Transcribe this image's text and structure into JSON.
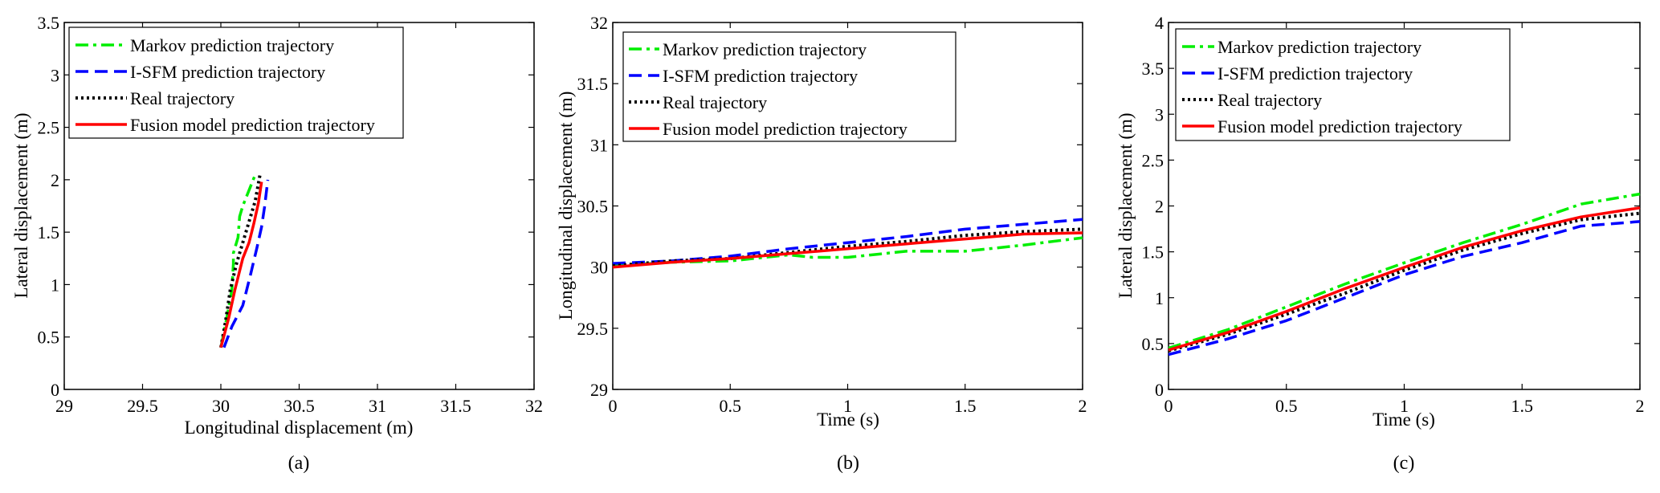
{
  "figure": {
    "captions": [
      "(a)",
      "(b)",
      "(c)"
    ]
  },
  "series_styles": [
    {
      "name": "Markov prediction trajectory",
      "color": "#00ee00",
      "dash": "dashdot"
    },
    {
      "name": "I-SFM prediction trajectory",
      "color": "#0000ff",
      "dash": "dashed"
    },
    {
      "name": "Real trajectory",
      "color": "#000000",
      "dash": "dotted"
    },
    {
      "name": "Fusion model prediction trajectory",
      "color": "#ff0000",
      "dash": "solid"
    }
  ],
  "chart_data": [
    {
      "id": "a",
      "type": "line",
      "caption": "(a)",
      "xlabel": "Longitudinal displacement (m)",
      "ylabel": "Lateral displacement (m)",
      "xlim": [
        29,
        32
      ],
      "ylim": [
        0,
        3.5
      ],
      "xticks": [
        29,
        29.5,
        30,
        30.5,
        31,
        31.5,
        32
      ],
      "yticks": [
        0,
        0.5,
        1,
        1.5,
        2,
        2.5,
        3,
        3.5
      ],
      "xtick_labels": [
        "29",
        "29.5",
        "30",
        "30.5",
        "31",
        "31.5",
        "32"
      ],
      "ytick_labels": [
        "0",
        "0.5",
        "1",
        "1.5",
        "2",
        "2.5",
        "3",
        "3.5"
      ],
      "legend": [
        "Markov prediction trajectory",
        "I-SFM prediction trajectory",
        "Real trajectory",
        "Fusion model prediction trajectory"
      ],
      "legend_position": "top-left",
      "series": [
        {
          "name": "Markov prediction trajectory",
          "x": [
            30.0,
            30.04,
            30.07,
            30.08,
            30.08,
            30.11,
            30.12,
            30.14,
            30.18,
            30.22
          ],
          "y": [
            0.4,
            0.7,
            0.95,
            1.2,
            1.3,
            1.45,
            1.65,
            1.75,
            1.9,
            2.05
          ]
        },
        {
          "name": "I-SFM prediction trajectory",
          "x": [
            30.02,
            30.07,
            30.14,
            30.19,
            30.23,
            30.26,
            30.28,
            30.3
          ],
          "y": [
            0.4,
            0.6,
            0.8,
            1.1,
            1.35,
            1.55,
            1.75,
            2.0
          ]
        },
        {
          "name": "Real trajectory",
          "x": [
            30.0,
            30.03,
            30.06,
            30.1,
            30.14,
            30.18,
            30.22,
            30.25
          ],
          "y": [
            0.4,
            0.65,
            0.95,
            1.2,
            1.4,
            1.6,
            1.8,
            2.05
          ]
        },
        {
          "name": "Fusion model prediction trajectory",
          "x": [
            30.0,
            30.05,
            30.09,
            30.14,
            30.18,
            30.21,
            30.24,
            30.26
          ],
          "y": [
            0.4,
            0.68,
            0.95,
            1.25,
            1.4,
            1.58,
            1.78,
            1.98
          ]
        }
      ]
    },
    {
      "id": "b",
      "type": "line",
      "caption": "(b)",
      "xlabel": "Time (s)",
      "ylabel": "Longitudinal displacement (m)",
      "xlim": [
        0,
        2
      ],
      "ylim": [
        29,
        32
      ],
      "xticks": [
        0,
        0.5,
        1,
        1.5,
        2
      ],
      "yticks": [
        29,
        29.5,
        30,
        30.5,
        31,
        31.5,
        32
      ],
      "xtick_labels": [
        "0",
        "0.5",
        "1",
        "1.5",
        "2"
      ],
      "ytick_labels": [
        "29",
        "29.5",
        "30",
        "30.5",
        "31",
        "31.5",
        "32"
      ],
      "legend": [
        "Markov prediction trajectory",
        "I-SFM prediction trajectory",
        "Real trajectory",
        "Fusion model prediction trajectory"
      ],
      "legend_position": "top-right",
      "series": [
        {
          "name": "Markov prediction trajectory",
          "x": [
            0,
            0.25,
            0.5,
            0.75,
            0.85,
            1.0,
            1.25,
            1.5,
            1.75,
            2.0
          ],
          "y": [
            30.01,
            30.04,
            30.05,
            30.1,
            30.08,
            30.08,
            30.13,
            30.13,
            30.18,
            30.24
          ]
        },
        {
          "name": "I-SFM prediction trajectory",
          "x": [
            0,
            0.25,
            0.5,
            0.75,
            1.0,
            1.25,
            1.5,
            1.75,
            2.0
          ],
          "y": [
            30.03,
            30.05,
            30.09,
            30.15,
            30.2,
            30.25,
            30.31,
            30.35,
            30.39
          ]
        },
        {
          "name": "Real trajectory",
          "x": [
            0,
            0.25,
            0.5,
            0.75,
            1.0,
            1.25,
            1.5,
            1.75,
            2.0
          ],
          "y": [
            30.01,
            30.05,
            30.07,
            30.12,
            30.17,
            30.21,
            30.26,
            30.29,
            30.31
          ]
        },
        {
          "name": "Fusion model prediction trajectory",
          "x": [
            0,
            0.25,
            0.5,
            0.75,
            1.0,
            1.25,
            1.5,
            1.75,
            2.0
          ],
          "y": [
            30.0,
            30.04,
            30.07,
            30.11,
            30.15,
            30.19,
            30.23,
            30.27,
            30.28
          ]
        }
      ]
    },
    {
      "id": "c",
      "type": "line",
      "caption": "(c)",
      "xlabel": "Time (s)",
      "ylabel": "Lateral displacement (m)",
      "xlim": [
        0,
        2
      ],
      "ylim": [
        0,
        4
      ],
      "xticks": [
        0,
        0.5,
        1,
        1.5,
        2
      ],
      "yticks": [
        0,
        0.5,
        1,
        1.5,
        2,
        2.5,
        3,
        3.5,
        4
      ],
      "xtick_labels": [
        "0",
        "0.5",
        "1",
        "1.5",
        "2"
      ],
      "ytick_labels": [
        "0",
        "0.5",
        "1",
        "1.5",
        "2",
        "2.5",
        "3",
        "3.5",
        "4"
      ],
      "legend": [
        "Markov prediction trajectory",
        "I-SFM prediction trajectory",
        "Real trajectory",
        "Fusion model prediction trajectory"
      ],
      "legend_position": "top-right",
      "series": [
        {
          "name": "Markov prediction trajectory",
          "x": [
            0,
            0.25,
            0.5,
            0.75,
            1.0,
            1.25,
            1.5,
            1.75,
            2.0
          ],
          "y": [
            0.45,
            0.65,
            0.9,
            1.15,
            1.38,
            1.6,
            1.8,
            2.02,
            2.13
          ]
        },
        {
          "name": "I-SFM prediction trajectory",
          "x": [
            0,
            0.25,
            0.5,
            0.75,
            1.0,
            1.25,
            1.5,
            1.75,
            2.0
          ],
          "y": [
            0.38,
            0.55,
            0.75,
            1.0,
            1.25,
            1.45,
            1.6,
            1.78,
            1.83
          ]
        },
        {
          "name": "Real trajectory",
          "x": [
            0,
            0.25,
            0.5,
            0.75,
            1.0,
            1.25,
            1.5,
            1.75,
            2.0
          ],
          "y": [
            0.42,
            0.6,
            0.82,
            1.05,
            1.3,
            1.52,
            1.7,
            1.85,
            1.92
          ]
        },
        {
          "name": "Fusion model prediction trajectory",
          "x": [
            0,
            0.25,
            0.5,
            0.75,
            1.0,
            1.25,
            1.5,
            1.75,
            2.0
          ],
          "y": [
            0.43,
            0.62,
            0.85,
            1.1,
            1.33,
            1.55,
            1.73,
            1.88,
            1.98
          ]
        }
      ]
    }
  ]
}
